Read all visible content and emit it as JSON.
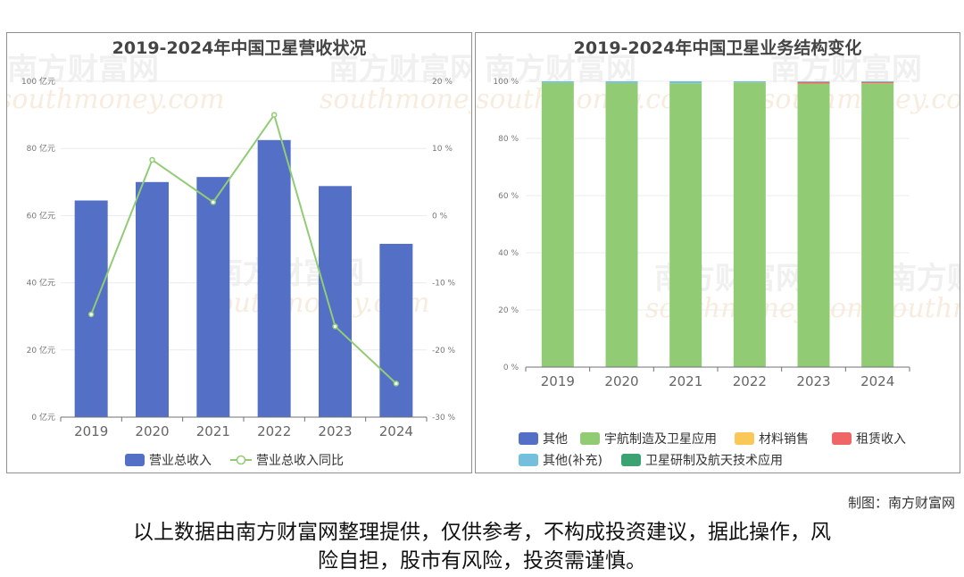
{
  "watermark": {
    "brand": "南方财富网",
    "site": "southmoney.com"
  },
  "charts": {
    "left": {
      "title": "2019-2024年中国卫星营收状况"
    },
    "right": {
      "title": "2019-2024年中国卫星业务结构变化"
    }
  },
  "chart_data": [
    {
      "type": "bar",
      "title": "2019-2024年中国卫星营收状况",
      "categories": [
        "2019",
        "2020",
        "2021",
        "2022",
        "2023",
        "2024"
      ],
      "y_left": {
        "ticks": [
          "0 亿元",
          "20 亿元",
          "40 亿元",
          "60 亿元",
          "80 亿元",
          "100 亿元"
        ],
        "range": [
          0,
          100
        ]
      },
      "y_right": {
        "ticks": [
          "-30 %",
          "-20 %",
          "-10 %",
          "0 %",
          "10 %",
          "20 %"
        ],
        "range": [
          -30,
          20
        ]
      },
      "series": [
        {
          "name": "营业总收入",
          "type": "bar",
          "axis": "left",
          "color": "#5470c6",
          "values": [
            64.5,
            70.0,
            71.5,
            82.5,
            68.8,
            51.6
          ]
        },
        {
          "name": "营业总收入同比",
          "type": "line",
          "axis": "right",
          "color": "#91cc75",
          "values": [
            -14.7,
            8.3,
            2.0,
            15.0,
            -16.5,
            -25.0
          ]
        }
      ],
      "legend_position": "bottom"
    },
    {
      "type": "bar",
      "stacked": true,
      "title": "2019-2024年中国卫星业务结构变化",
      "categories": [
        "2019",
        "2020",
        "2021",
        "2022",
        "2023",
        "2024"
      ],
      "y": {
        "ticks": [
          "0 %",
          "20 %",
          "40 %",
          "60 %",
          "80 %",
          "100 %"
        ],
        "range": [
          0,
          100
        ]
      },
      "series": [
        {
          "name": "其他",
          "color": "#5470c6",
          "values": [
            0,
            0,
            0,
            0,
            0,
            0
          ]
        },
        {
          "name": "宇航制造及卫星应用",
          "color": "#91cc75",
          "values": [
            99.5,
            99.4,
            99.3,
            99.6,
            99.2,
            99.3
          ]
        },
        {
          "name": "材料销售",
          "color": "#fac858",
          "values": [
            0,
            0,
            0,
            0,
            0,
            0
          ]
        },
        {
          "name": "租赁收入",
          "color": "#ee6666",
          "values": [
            0,
            0,
            0,
            0,
            0.6,
            0.5
          ]
        },
        {
          "name": "其他(补充)",
          "color": "#73c0de",
          "values": [
            0.5,
            0.6,
            0.7,
            0.4,
            0.2,
            0.2
          ]
        },
        {
          "name": "卫星研制及航天技术应用",
          "color": "#3ba272",
          "values": [
            0,
            0,
            0,
            0,
            0,
            0
          ]
        }
      ],
      "legend_position": "bottom"
    }
  ],
  "footer": {
    "credit": "制图：南方财富网",
    "disclaimer_line1": "以上数据由南方财富网整理提供，仅供参考，不构成投资建议，据此操作，风",
    "disclaimer_line2": "险自担，股市有风险，投资需谨慎。"
  }
}
